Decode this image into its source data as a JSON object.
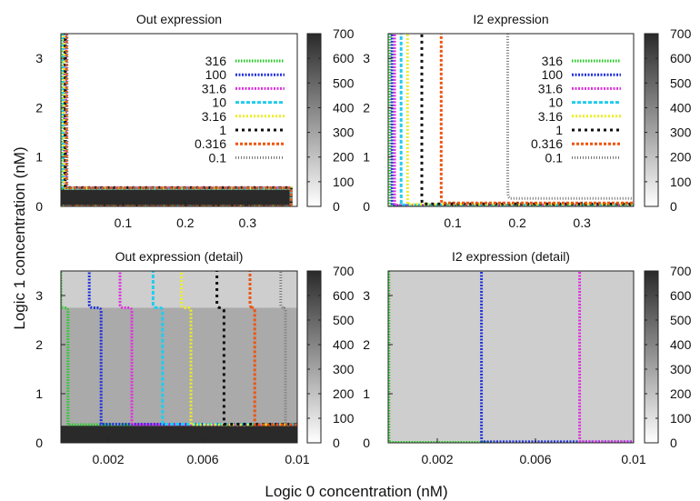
{
  "figure": {
    "xlabel": "Logic 0 concentration (nM)",
    "ylabel": "Logic 1 concentration (nM)"
  },
  "colors": {
    "316": "#22cc22",
    "100": "#2233dd",
    "31.6": "#dd33dd",
    "10": "#22ccee",
    "3.16": "#eeee22",
    "1": "#111111",
    "0.316": "#ee5511",
    "0.1": "#777777"
  },
  "chart_data": [
    {
      "type": "line",
      "title": "Out expression",
      "xlim": [
        0,
        0.38
      ],
      "ylim": [
        0,
        3.5
      ],
      "xticks": [
        "0.1",
        "0.2",
        "0.3"
      ],
      "yticks": [
        "0",
        "1",
        "2",
        "3"
      ],
      "colorbar": {
        "range": [
          0,
          700
        ],
        "ticks": [
          "0",
          "100",
          "200",
          "300",
          "400",
          "500",
          "600",
          "700"
        ]
      },
      "background_value": 0,
      "high_region": {
        "x_max": 0.37,
        "y_max": 0.35,
        "value": 700
      },
      "legend": [
        "316",
        "100",
        "31.6",
        "10",
        "3.16",
        "1",
        "0.316",
        "0.1"
      ],
      "series": [
        {
          "name": "316",
          "shape": "L",
          "x_edge": 0.003,
          "y_edge": 0.36
        },
        {
          "name": "100",
          "shape": "L",
          "x_edge": 0.006,
          "y_edge": 0.37
        },
        {
          "name": "31.6",
          "shape": "L",
          "x_edge": 0.008,
          "y_edge": 0.38
        },
        {
          "name": "10",
          "shape": "L",
          "x_edge": 0.004,
          "y_edge": 0.36
        },
        {
          "name": "3.16",
          "shape": "L",
          "x_edge": 0.005,
          "y_edge": 0.37
        },
        {
          "name": "1",
          "shape": "L",
          "x_edge": 0.007,
          "y_edge": 0.38
        },
        {
          "name": "0.316",
          "shape": "L",
          "x_edge": 0.009,
          "y_edge": 0.37
        },
        {
          "name": "0.1",
          "shape": "L",
          "x_edge": 0.01,
          "y_edge": 0.36
        }
      ]
    },
    {
      "type": "line",
      "title": "I2 expression",
      "xlim": [
        0,
        0.38
      ],
      "ylim": [
        0,
        3.5
      ],
      "xticks": [
        "0.1",
        "0.2",
        "0.3"
      ],
      "yticks": [
        "0",
        "1",
        "2",
        "3"
      ],
      "colorbar": {
        "range": [
          0,
          700
        ],
        "ticks": [
          "0",
          "100",
          "200",
          "300",
          "400",
          "500",
          "600",
          "700"
        ]
      },
      "background_value": 0,
      "legend": [
        "316",
        "100",
        "31.6",
        "10",
        "3.16",
        "1",
        "0.316",
        "0.1"
      ],
      "series": [
        {
          "name": "316",
          "shape": "hyperbola",
          "x_edge": 0.003,
          "y_edge": 0.01
        },
        {
          "name": "100",
          "shape": "hyperbola",
          "x_edge": 0.006,
          "y_edge": 0.02
        },
        {
          "name": "31.6",
          "shape": "hyperbola",
          "x_edge": 0.01,
          "y_edge": 0.02
        },
        {
          "name": "10",
          "shape": "hyperbola",
          "x_edge": 0.02,
          "y_edge": 0.03
        },
        {
          "name": "3.16",
          "shape": "hyperbola",
          "x_edge": 0.03,
          "y_edge": 0.04
        },
        {
          "name": "1",
          "shape": "hyperbola",
          "x_edge": 0.052,
          "y_edge": 0.05
        },
        {
          "name": "0.316",
          "shape": "hyperbola",
          "x_edge": 0.082,
          "y_edge": 0.07
        },
        {
          "name": "0.1",
          "shape": "hyperbola",
          "x_edge": 0.185,
          "y_edge": 0.16
        }
      ]
    },
    {
      "type": "line",
      "title": "Out expression (detail)",
      "xlim": [
        0,
        0.01
      ],
      "ylim": [
        0,
        3.5
      ],
      "xticks": [
        "0.002",
        "0.006",
        "0.01"
      ],
      "yticks": [
        "0",
        "1",
        "2",
        "3"
      ],
      "colorbar": {
        "range": [
          0,
          700
        ],
        "ticks": [
          "0",
          "100",
          "200",
          "300",
          "400",
          "500",
          "600",
          "700"
        ]
      },
      "regions": [
        {
          "y_min": 0,
          "y_max": 0.35,
          "value": 700
        },
        {
          "y_min": 0.35,
          "y_max": 2.75,
          "value": 280
        },
        {
          "y_min": 2.75,
          "y_max": 3.5,
          "value": 160
        }
      ],
      "legend": [],
      "series": [
        {
          "name": "316",
          "shape": "step",
          "x_low": 0.0003,
          "x_high": 0.0,
          "y_step": 2.75,
          "y_edge": 0.37
        },
        {
          "name": "100",
          "shape": "step",
          "x_low": 0.0017,
          "x_high": 0.0012,
          "y_step": 2.75,
          "y_edge": 0.38
        },
        {
          "name": "31.6",
          "shape": "step",
          "x_low": 0.003,
          "x_high": 0.0025,
          "y_step": 2.75,
          "y_edge": 0.37
        },
        {
          "name": "10",
          "shape": "step",
          "x_low": 0.0043,
          "x_high": 0.0039,
          "y_step": 2.75,
          "y_edge": 0.38
        },
        {
          "name": "3.16",
          "shape": "step",
          "x_low": 0.0055,
          "x_high": 0.0051,
          "y_step": 2.75,
          "y_edge": 0.37
        },
        {
          "name": "1",
          "shape": "step",
          "x_low": 0.0069,
          "x_high": 0.0066,
          "y_step": 2.75,
          "y_edge": 0.38
        },
        {
          "name": "0.316",
          "shape": "step",
          "x_low": 0.0082,
          "x_high": 0.008,
          "y_step": 2.75,
          "y_edge": 0.37
        },
        {
          "name": "0.1",
          "shape": "step",
          "x_low": 0.0095,
          "x_high": 0.0093,
          "y_step": 2.75,
          "y_edge": 0.38
        }
      ]
    },
    {
      "type": "line",
      "title": "I2 expression (detail)",
      "xlim": [
        0,
        0.01
      ],
      "ylim": [
        0,
        3.5
      ],
      "xticks": [
        "0.002",
        "0.006",
        "0.01"
      ],
      "yticks": [
        "0",
        "1",
        "2",
        "3"
      ],
      "colorbar": {
        "range": [
          0,
          700
        ],
        "ticks": [
          "0",
          "100",
          "200",
          "300",
          "400",
          "500",
          "600",
          "700"
        ]
      },
      "regions": [
        {
          "y_min": 0,
          "y_max": 3.5,
          "value": 160
        }
      ],
      "legend": [],
      "series": [
        {
          "name": "316",
          "shape": "hyperbola",
          "x_edge": 3e-05,
          "y_edge": 0.01,
          "x_end": 0.0045
        },
        {
          "name": "100",
          "shape": "hyperbola",
          "x_edge": 0.0038,
          "y_edge": 0.02
        },
        {
          "name": "31.6",
          "shape": "hyperbola",
          "x_edge": 0.0078,
          "y_edge": 0.02
        }
      ]
    }
  ]
}
